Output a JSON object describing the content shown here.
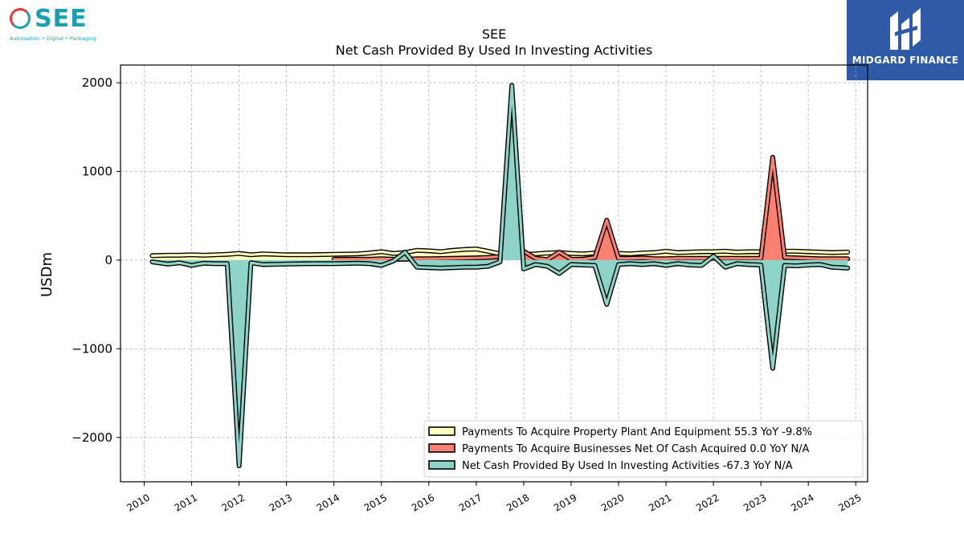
{
  "logo": {
    "name": "SEE",
    "tagline": "Automation • Digital • Packaging"
  },
  "brand": {
    "name": "MIDGARD FINANCE"
  },
  "chart_data": {
    "type": "area",
    "title": "SEE",
    "subtitle": "Net Cash Provided By Used In Investing Activities",
    "ylabel": "USDm",
    "xlabel": "",
    "xlim": [
      2009.5,
      2025.25
    ],
    "ylim": [
      -2500,
      2200
    ],
    "yticks": [
      2000,
      1000,
      0,
      -1000,
      -2000
    ],
    "ytick_labels": [
      "2000",
      "1000",
      "0",
      "−1000",
      "−2000"
    ],
    "xticks": [
      2010,
      2011,
      2012,
      2013,
      2014,
      2015,
      2016,
      2017,
      2018,
      2019,
      2020,
      2021,
      2022,
      2023,
      2024,
      2025
    ],
    "xtick_labels": [
      "2010",
      "2011",
      "2012",
      "2013",
      "2014",
      "2015",
      "2016",
      "2017",
      "2018",
      "2019",
      "2020",
      "2021",
      "2022",
      "2023",
      "2024",
      "2025"
    ],
    "grid": true,
    "legend_position": "lower-right",
    "series": [
      {
        "name": "Payments To Acquire Property Plant And Equipment  55.3 YoY -9.8%",
        "color": "#ffffbf",
        "x": [
          2010.17,
          2010.5,
          2010.75,
          2011.0,
          2011.25,
          2011.5,
          2011.75,
          2012.0,
          2012.25,
          2012.5,
          2013.0,
          2013.5,
          2014.0,
          2014.5,
          2014.75,
          2015.0,
          2015.25,
          2015.5,
          2015.75,
          2016.0,
          2016.25,
          2016.5,
          2016.75,
          2017.0,
          2017.25,
          2017.5,
          2017.75,
          2018.0,
          2018.25,
          2018.5,
          2018.75,
          2019.0,
          2019.25,
          2019.5,
          2019.75,
          2020.0,
          2020.25,
          2020.5,
          2020.75,
          2021.0,
          2021.25,
          2021.5,
          2021.75,
          2022.0,
          2022.25,
          2022.5,
          2022.75,
          2023.0,
          2023.25,
          2023.5,
          2023.75,
          2024.0,
          2024.25,
          2024.5,
          2024.83
        ],
        "values": [
          50,
          55,
          55,
          60,
          55,
          60,
          65,
          75,
          60,
          70,
          60,
          60,
          65,
          70,
          80,
          95,
          75,
          85,
          110,
          105,
          95,
          110,
          120,
          125,
          100,
          70,
          60,
          65,
          70,
          80,
          85,
          75,
          70,
          80,
          90,
          75,
          70,
          80,
          85,
          100,
          85,
          90,
          95,
          95,
          100,
          90,
          95,
          95,
          75,
          100,
          100,
          95,
          90,
          85,
          90
        ]
      },
      {
        "name": "Payments To Acquire Businesses Net Of Cash Acquired  0.0 YoY N/A",
        "color": "#fb8072",
        "x": [
          2014.0,
          2014.5,
          2014.75,
          2015.0,
          2015.25,
          2015.5,
          2015.75,
          2016.0,
          2016.5,
          2017.0,
          2017.25,
          2017.5,
          2017.75,
          2018.0,
          2018.25,
          2018.5,
          2018.75,
          2019.0,
          2019.25,
          2019.5,
          2019.75,
          2020.0,
          2020.25,
          2020.5,
          2020.75,
          2021.0,
          2021.25,
          2021.5,
          2021.75,
          2022.0,
          2022.25,
          2022.5,
          2022.75,
          2023.0,
          2023.25,
          2023.5,
          2023.75,
          2024.0,
          2024.25,
          2024.5,
          2024.83
        ],
        "values": [
          10,
          10,
          10,
          15,
          10,
          10,
          15,
          15,
          20,
          25,
          30,
          40,
          50,
          100,
          20,
          5,
          90,
          10,
          10,
          30,
          450,
          20,
          20,
          25,
          15,
          15,
          20,
          20,
          20,
          20,
          20,
          20,
          20,
          20,
          1160,
          30,
          25,
          20,
          15,
          15,
          15
        ]
      },
      {
        "name": "Net Cash Provided By Used In Investing Activities  -67.3 YoY N/A",
        "color": "#8dd3c7",
        "x": [
          2010.17,
          2010.5,
          2010.75,
          2011.0,
          2011.25,
          2011.5,
          2011.75,
          2012.0,
          2012.25,
          2012.5,
          2013.0,
          2013.5,
          2014.0,
          2014.5,
          2014.75,
          2015.0,
          2015.25,
          2015.5,
          2015.75,
          2016.0,
          2016.25,
          2016.5,
          2016.75,
          2017.0,
          2017.25,
          2017.5,
          2017.75,
          2018.0,
          2018.25,
          2018.5,
          2018.75,
          2019.0,
          2019.25,
          2019.5,
          2019.75,
          2020.0,
          2020.25,
          2020.5,
          2020.75,
          2021.0,
          2021.25,
          2021.5,
          2021.75,
          2022.0,
          2022.25,
          2022.5,
          2022.75,
          2023.0,
          2023.25,
          2023.5,
          2023.75,
          2024.0,
          2024.25,
          2024.5,
          2024.83
        ],
        "values": [
          -20,
          -45,
          -30,
          -60,
          -35,
          -40,
          -40,
          -2320,
          -30,
          -50,
          -45,
          -40,
          -40,
          -35,
          -40,
          -60,
          -10,
          90,
          -80,
          -85,
          -90,
          -85,
          -80,
          -80,
          -70,
          -20,
          1970,
          -100,
          -50,
          -70,
          -150,
          -50,
          -55,
          -60,
          -500,
          -50,
          -40,
          -50,
          -40,
          -60,
          -40,
          -55,
          -60,
          45,
          -80,
          -40,
          -50,
          -55,
          -1220,
          -60,
          -65,
          -55,
          -50,
          -80,
          -90
        ]
      }
    ]
  }
}
